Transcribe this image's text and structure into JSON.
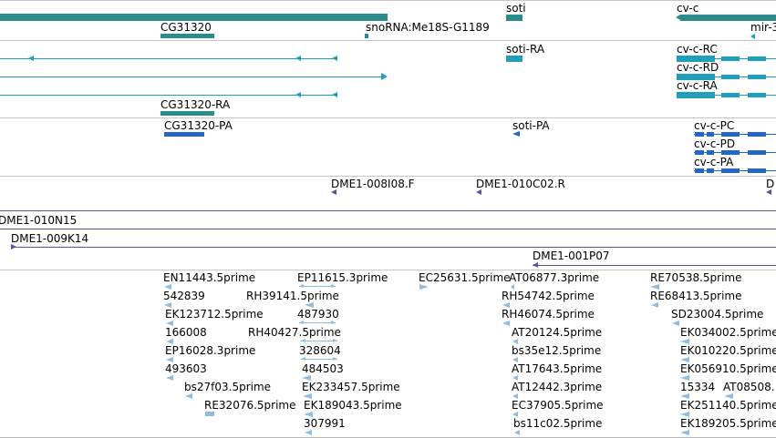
{
  "colors": {
    "gene": "#2b8c8c",
    "mrna": "#1f9fb9",
    "cdna": "#2466c4",
    "bac": "#6a4c9c",
    "est": "#8fbde0",
    "divider": "#c8c8c8"
  },
  "genes": {
    "labels": [
      "soti",
      "cv-c",
      "CG31320",
      "snoRNA:Me18S-G1189",
      "mir-3"
    ]
  },
  "mrna": {
    "labels": [
      "soti-RA",
      "cv-c-RC",
      "cv-c-RD",
      "cv-c-RA",
      "CG31320-RA"
    ]
  },
  "cdna": {
    "labels": [
      "CG31320-PA",
      "soti-PA",
      "cv-c-PC",
      "cv-c-PD",
      "cv-c-PA"
    ]
  },
  "bac": {
    "labels": [
      "DME1-008I08.F",
      "DME1-010C02.R",
      "D",
      "DME1-010N15",
      "DME1-009K14",
      "DME1-001P07"
    ]
  },
  "est": {
    "labels": [
      "EN11443.5prime",
      "EP11615.3prime",
      "EC25631.5prime",
      "AT06877.3prime",
      "RE70538.5prime",
      "542839",
      "RH39141.5prime",
      "RH54742.5prime",
      "RE68413.5prime",
      "EK123712.5prime",
      "487930",
      "RH46074.5prime",
      "SD23004.5prime",
      "166008",
      "RH40427.5prime",
      "AT20124.5prime",
      "EK034002.5prime",
      "EP16028.3prime",
      "328604",
      "bs35e12.5prime",
      "EK010220.5prime",
      "493603",
      "484503",
      "AT17643.5prime",
      "EK056910.5prime",
      "bs27f03.5prime",
      "EK233457.5prime",
      "AT12442.3prime",
      "15334",
      "AT08508.",
      "RE32076.5prime",
      "EK189043.5prime",
      "EC37905.5prime",
      "EK251140.5prime",
      "307991",
      "bs11c02.5prime",
      "EK189205.5prime"
    ]
  }
}
